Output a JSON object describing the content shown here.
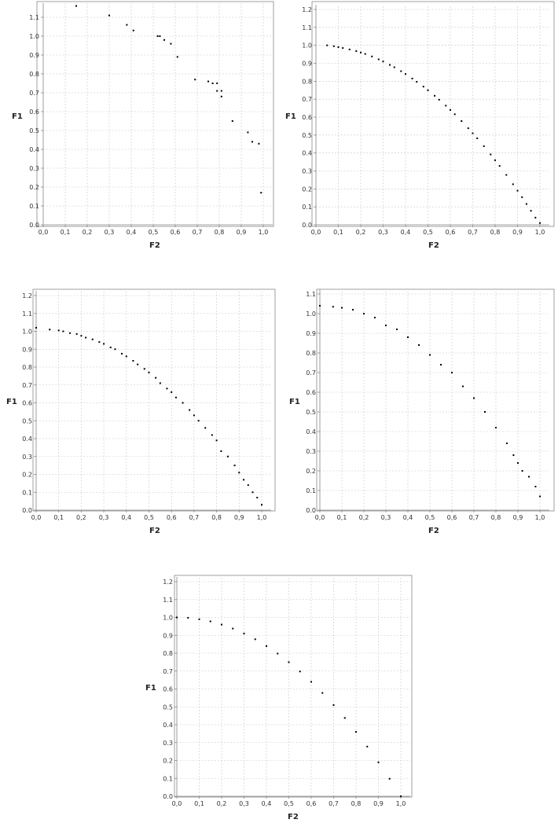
{
  "chart_data": [
    {
      "type": "scatter",
      "xlabel": "F2",
      "ylabel": "F1",
      "xlim": [
        0.0,
        1.0
      ],
      "ylim": [
        0.0,
        1.15
      ],
      "xticks": [
        "0,0",
        "0,1",
        "0,2",
        "0,3",
        "0,4",
        "0,5",
        "0,6",
        "0,7",
        "0,8",
        "0,9",
        "1,0"
      ],
      "yticks": [
        "0.0",
        "0.1",
        "0.2",
        "0.3",
        "0.4",
        "0.5",
        "0.6",
        "0.7",
        "0.8",
        "0.9",
        "1.0",
        "1.1"
      ],
      "grid": true,
      "points": [
        [
          0.15,
          1.16
        ],
        [
          0.3,
          1.11
        ],
        [
          0.38,
          1.06
        ],
        [
          0.41,
          1.03
        ],
        [
          0.52,
          1.0
        ],
        [
          0.53,
          1.0
        ],
        [
          0.55,
          0.98
        ],
        [
          0.58,
          0.96
        ],
        [
          0.61,
          0.89
        ],
        [
          0.69,
          0.77
        ],
        [
          0.75,
          0.76
        ],
        [
          0.77,
          0.75
        ],
        [
          0.79,
          0.75
        ],
        [
          0.79,
          0.71
        ],
        [
          0.81,
          0.71
        ],
        [
          0.81,
          0.68
        ],
        [
          0.86,
          0.55
        ],
        [
          0.93,
          0.49
        ],
        [
          0.95,
          0.44
        ],
        [
          0.98,
          0.43
        ],
        [
          0.99,
          0.17
        ]
      ]
    },
    {
      "type": "scatter",
      "xlabel": "F2",
      "ylabel": "F1",
      "xlim": [
        0.0,
        1.0
      ],
      "ylim": [
        0.0,
        1.2
      ],
      "xticks": [
        "0,0",
        "0,1",
        "0,2",
        "0,3",
        "0,4",
        "0,5",
        "0,6",
        "0,7",
        "0,8",
        "0,9",
        "1,0"
      ],
      "yticks": [
        "0.0",
        "0.1",
        "0.2",
        "0.3",
        "0.4",
        "0.5",
        "0.6",
        "0.7",
        "0.8",
        "0.9",
        "1.0",
        "1.1",
        "1.2"
      ],
      "grid": true,
      "points": [
        [
          0.05,
          1.0
        ],
        [
          0.08,
          0.995
        ],
        [
          0.1,
          0.99
        ],
        [
          0.12,
          0.985
        ],
        [
          0.15,
          0.977
        ],
        [
          0.18,
          0.968
        ],
        [
          0.2,
          0.96
        ],
        [
          0.22,
          0.952
        ],
        [
          0.25,
          0.938
        ],
        [
          0.28,
          0.922
        ],
        [
          0.3,
          0.91
        ],
        [
          0.33,
          0.891
        ],
        [
          0.35,
          0.878
        ],
        [
          0.38,
          0.856
        ],
        [
          0.4,
          0.84
        ],
        [
          0.43,
          0.815
        ],
        [
          0.45,
          0.797
        ],
        [
          0.48,
          0.77
        ],
        [
          0.5,
          0.75
        ],
        [
          0.53,
          0.719
        ],
        [
          0.55,
          0.697
        ],
        [
          0.58,
          0.664
        ],
        [
          0.6,
          0.64
        ],
        [
          0.62,
          0.616
        ],
        [
          0.65,
          0.578
        ],
        [
          0.68,
          0.538
        ],
        [
          0.7,
          0.51
        ],
        [
          0.72,
          0.482
        ],
        [
          0.75,
          0.438
        ],
        [
          0.78,
          0.392
        ],
        [
          0.8,
          0.36
        ],
        [
          0.82,
          0.328
        ],
        [
          0.85,
          0.278
        ],
        [
          0.88,
          0.226
        ],
        [
          0.9,
          0.19
        ],
        [
          0.92,
          0.154
        ],
        [
          0.94,
          0.116
        ],
        [
          0.96,
          0.078
        ],
        [
          0.98,
          0.04
        ],
        [
          1.0,
          0.01
        ]
      ]
    },
    {
      "type": "scatter",
      "xlabel": "F2",
      "ylabel": "F1",
      "xlim": [
        0.0,
        1.0
      ],
      "ylim": [
        0.0,
        1.2
      ],
      "xticks": [
        "0,0",
        "0,1",
        "0,2",
        "0,3",
        "0,4",
        "0,5",
        "0,6",
        "0,7",
        "0,8",
        "0,9",
        "1,0"
      ],
      "yticks": [
        "0.0",
        "0.1",
        "0.2",
        "0.3",
        "0.4",
        "0.5",
        "0.6",
        "0.7",
        "0.8",
        "0.9",
        "1.0",
        "1.1",
        "1.2"
      ],
      "grid": true,
      "points": [
        [
          0.0,
          1.02
        ],
        [
          0.06,
          1.01
        ],
        [
          0.1,
          1.005
        ],
        [
          0.12,
          1.0
        ],
        [
          0.15,
          0.99
        ],
        [
          0.18,
          0.985
        ],
        [
          0.2,
          0.975
        ],
        [
          0.22,
          0.965
        ],
        [
          0.25,
          0.955
        ],
        [
          0.28,
          0.94
        ],
        [
          0.3,
          0.93
        ],
        [
          0.33,
          0.91
        ],
        [
          0.35,
          0.9
        ],
        [
          0.38,
          0.875
        ],
        [
          0.4,
          0.86
        ],
        [
          0.43,
          0.835
        ],
        [
          0.45,
          0.815
        ],
        [
          0.48,
          0.79
        ],
        [
          0.5,
          0.77
        ],
        [
          0.53,
          0.74
        ],
        [
          0.55,
          0.71
        ],
        [
          0.58,
          0.68
        ],
        [
          0.6,
          0.66
        ],
        [
          0.62,
          0.63
        ],
        [
          0.65,
          0.6
        ],
        [
          0.68,
          0.56
        ],
        [
          0.7,
          0.53
        ],
        [
          0.72,
          0.5
        ],
        [
          0.75,
          0.46
        ],
        [
          0.78,
          0.42
        ],
        [
          0.8,
          0.39
        ],
        [
          0.82,
          0.33
        ],
        [
          0.85,
          0.3
        ],
        [
          0.88,
          0.25
        ],
        [
          0.9,
          0.21
        ],
        [
          0.92,
          0.17
        ],
        [
          0.94,
          0.14
        ],
        [
          0.96,
          0.1
        ],
        [
          0.98,
          0.07
        ],
        [
          1.0,
          0.03
        ]
      ]
    },
    {
      "type": "scatter",
      "xlabel": "F2",
      "ylabel": "F1",
      "xlim": [
        0.0,
        1.0
      ],
      "ylim": [
        0.0,
        1.1
      ],
      "xticks": [
        "0,0",
        "0,1",
        "0,2",
        "0,3",
        "0,4",
        "0,5",
        "0,6",
        "0,7",
        "0,8",
        "0,9",
        "1,0"
      ],
      "yticks": [
        "0.0",
        "0.1",
        "0.2",
        "0.3",
        "0.4",
        "0.5",
        "0.6",
        "0.7",
        "0.8",
        "0.9",
        "1.0",
        "1.1"
      ],
      "grid": true,
      "points": [
        [
          0.0,
          1.04
        ],
        [
          0.06,
          1.035
        ],
        [
          0.1,
          1.03
        ],
        [
          0.15,
          1.02
        ],
        [
          0.2,
          1.0
        ],
        [
          0.25,
          0.98
        ],
        [
          0.3,
          0.94
        ],
        [
          0.35,
          0.92
        ],
        [
          0.4,
          0.88
        ],
        [
          0.45,
          0.84
        ],
        [
          0.5,
          0.79
        ],
        [
          0.55,
          0.74
        ],
        [
          0.6,
          0.7
        ],
        [
          0.65,
          0.63
        ],
        [
          0.7,
          0.57
        ],
        [
          0.75,
          0.5
        ],
        [
          0.8,
          0.42
        ],
        [
          0.85,
          0.34
        ],
        [
          0.88,
          0.28
        ],
        [
          0.9,
          0.24
        ],
        [
          0.92,
          0.2
        ],
        [
          0.95,
          0.17
        ],
        [
          0.98,
          0.12
        ],
        [
          1.0,
          0.07
        ]
      ]
    },
    {
      "type": "scatter",
      "xlabel": "F2",
      "ylabel": "F1",
      "xlim": [
        0.0,
        1.0
      ],
      "ylim": [
        0.0,
        1.2
      ],
      "xticks": [
        "0,0",
        "0,1",
        "0,2",
        "0,3",
        "0,4",
        "0,5",
        "0,6",
        "0,7",
        "0,8",
        "0,9",
        "1,0"
      ],
      "yticks": [
        "0.0",
        "0.1",
        "0.2",
        "0.3",
        "0.4",
        "0.5",
        "0.6",
        "0.7",
        "0.8",
        "0.9",
        "1.0",
        "1.1",
        "1.2"
      ],
      "grid": true,
      "points": [
        [
          0.0,
          1.0
        ],
        [
          0.05,
          0.998
        ],
        [
          0.1,
          0.99
        ],
        [
          0.15,
          0.978
        ],
        [
          0.2,
          0.96
        ],
        [
          0.25,
          0.938
        ],
        [
          0.3,
          0.91
        ],
        [
          0.35,
          0.878
        ],
        [
          0.4,
          0.84
        ],
        [
          0.45,
          0.798
        ],
        [
          0.5,
          0.75
        ],
        [
          0.55,
          0.698
        ],
        [
          0.6,
          0.64
        ],
        [
          0.65,
          0.578
        ],
        [
          0.7,
          0.51
        ],
        [
          0.75,
          0.438
        ],
        [
          0.8,
          0.36
        ],
        [
          0.85,
          0.278
        ],
        [
          0.9,
          0.19
        ],
        [
          0.95,
          0.098
        ],
        [
          1.0,
          0.0
        ]
      ]
    }
  ]
}
